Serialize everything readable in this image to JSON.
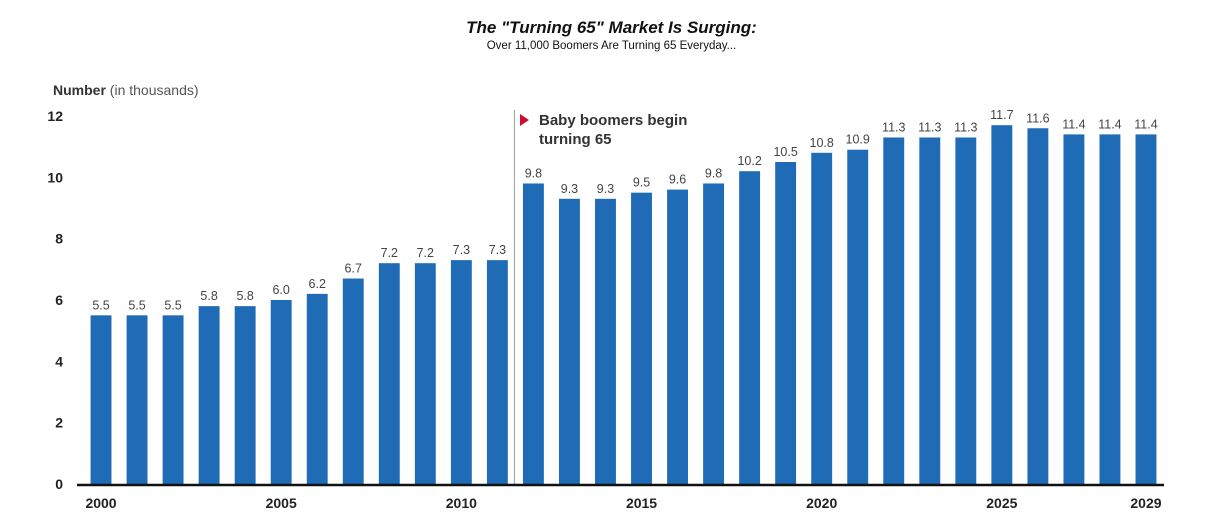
{
  "chart_data": {
    "type": "bar",
    "title": "The \"Turning 65\" Market Is Surging:",
    "subtitle": "Over 11,000 Boomers Are Turning 65 Everyday...",
    "ylabel_bold": "Number",
    "ylabel_rest": " (in thousands)",
    "categories": [
      "2000",
      "2001",
      "2002",
      "2003",
      "2004",
      "2005",
      "2006",
      "2007",
      "2008",
      "2009",
      "2010",
      "2011",
      "2012",
      "2013",
      "2014",
      "2015",
      "2016",
      "2017",
      "2018",
      "2019",
      "2020",
      "2021",
      "2022",
      "2023",
      "2024",
      "2025",
      "2026",
      "2027",
      "2028",
      "2029"
    ],
    "values": [
      5.5,
      5.5,
      5.5,
      5.8,
      5.8,
      6.0,
      6.2,
      6.7,
      7.2,
      7.2,
      7.3,
      7.3,
      9.8,
      9.3,
      9.3,
      9.5,
      9.6,
      9.8,
      10.2,
      10.5,
      10.8,
      10.9,
      11.3,
      11.3,
      11.3,
      11.7,
      11.6,
      11.4,
      11.4,
      11.4
    ],
    "value_labels": [
      "5.5",
      "5.5",
      "5.5",
      "5.8",
      "5.8",
      "6.0",
      "6.2",
      "6.7",
      "7.2",
      "7.2",
      "7.3",
      "7.3",
      "9.8",
      "9.3",
      "9.3",
      "9.5",
      "9.6",
      "9.8",
      "10.2",
      "10.5",
      "10.8",
      "10.9",
      "11.3",
      "11.3",
      "11.3",
      "11.7",
      "11.6",
      "11.4",
      "11.4",
      "11.4"
    ],
    "x_tick_labels": [
      "2000",
      "2005",
      "2010",
      "2015",
      "2020",
      "2025",
      "2029"
    ],
    "y_ticks": [
      0,
      2,
      4,
      6,
      8,
      10,
      12
    ],
    "ylim": [
      0,
      12
    ],
    "grid": false,
    "bar_color": "#1f6bb5",
    "annotation": {
      "line1": "Baby boomers begin",
      "line2": "turning 65",
      "at_category": "2012",
      "marker_color": "#c8102e"
    }
  }
}
